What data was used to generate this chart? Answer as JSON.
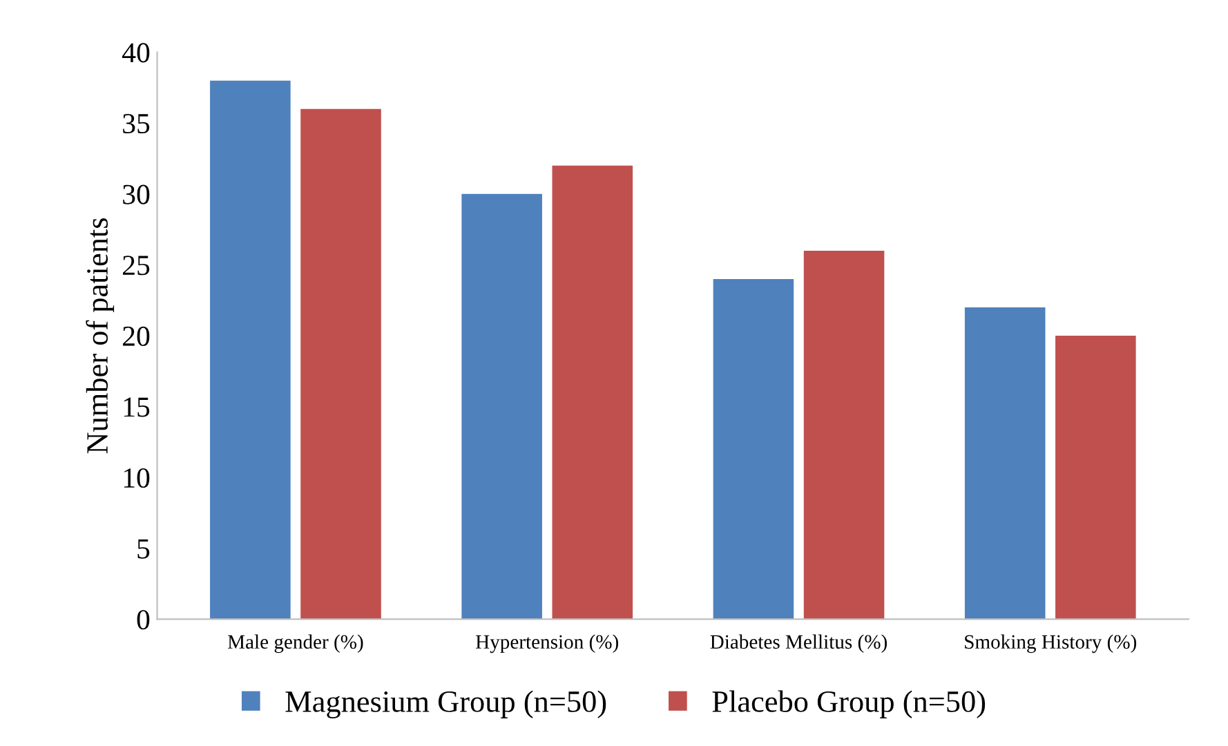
{
  "chart_data": {
    "type": "bar",
    "ylabel": "Number of patients",
    "categories": [
      "Male gender (%)",
      "Hypertension (%)",
      "Diabetes Mellitus (%)",
      "Smoking History (%)"
    ],
    "series": [
      {
        "name": "Magnesium Group (n=50)",
        "color": "#4f81bd",
        "values": [
          38,
          30,
          24,
          22
        ]
      },
      {
        "name": "Placebo Group (n=50)",
        "color": "#c0504d",
        "values": [
          36,
          32,
          26,
          20
        ]
      }
    ],
    "ylim": [
      0,
      40
    ],
    "yticks": [
      0,
      5,
      10,
      15,
      20,
      25,
      30,
      35,
      40
    ],
    "grid": false,
    "legend": "bottom"
  }
}
